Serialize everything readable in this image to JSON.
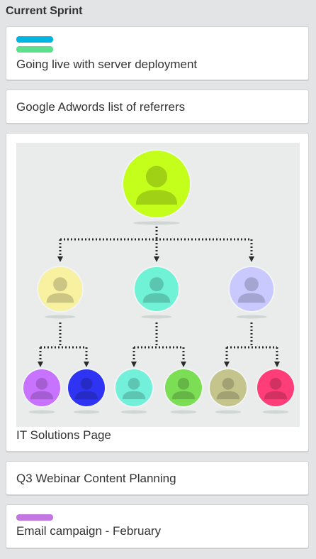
{
  "list": {
    "title": "Current Sprint"
  },
  "cards": [
    {
      "title": "Going live with server deployment",
      "labels": [
        {
          "color": "#00b5e2"
        },
        {
          "color": "#5de08e"
        }
      ]
    },
    {
      "title": "Google Adwords list of referrers"
    },
    {
      "title": "IT Solutions Page",
      "cover": {
        "type": "org-chart-image",
        "top_color": "#c3ff1a",
        "middle_colors": [
          "#f7f1a0",
          "#6ff2d6",
          "#c9c9ff"
        ],
        "bottom_colors": [
          "#c873ff",
          "#2e34f2",
          "#73f0d9",
          "#7bde55",
          "#c4c48c",
          "#ff3d78"
        ]
      }
    },
    {
      "title": "Q3 Webinar Content Planning"
    },
    {
      "title": "Email campaign - February",
      "labels": [
        {
          "color": "#c377e0"
        }
      ]
    }
  ]
}
